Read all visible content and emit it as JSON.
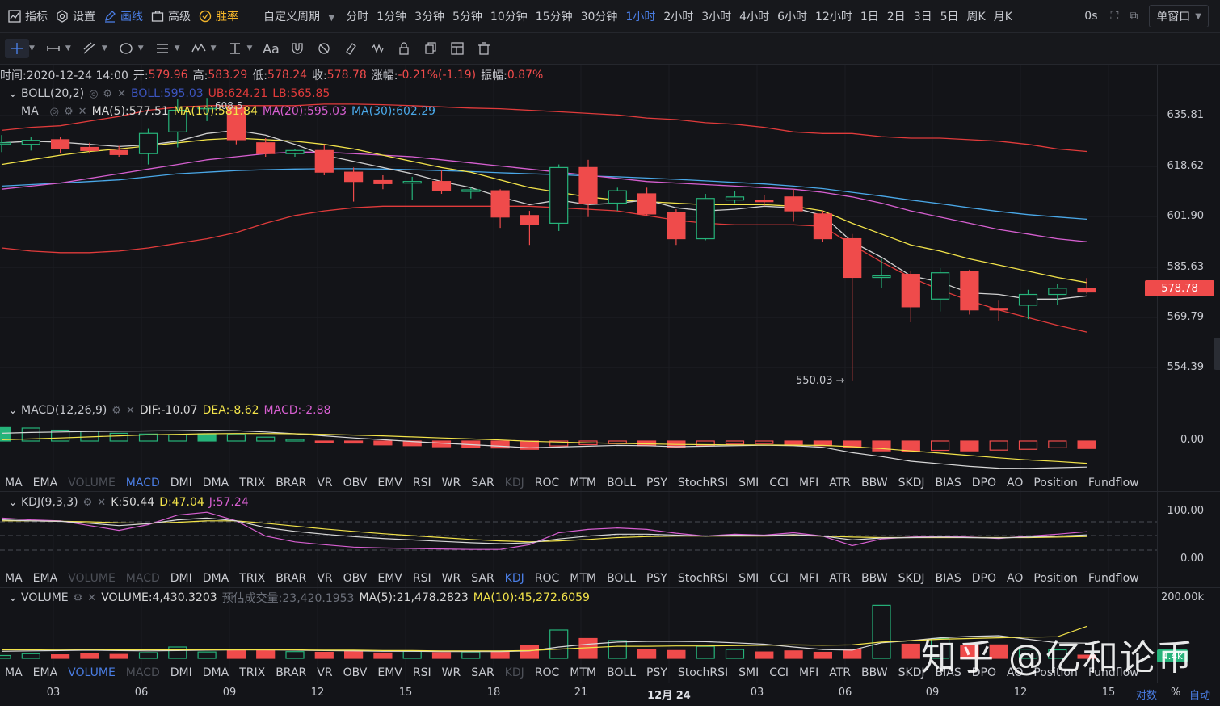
{
  "topbar": {
    "items": [
      {
        "label": "指标",
        "icon": "indicator-icon"
      },
      {
        "label": "设置",
        "icon": "gear-icon"
      },
      {
        "label": "画线",
        "icon": "pencil-icon",
        "active": true
      },
      {
        "label": "高级",
        "icon": "briefcase-icon"
      },
      {
        "label": "胜率",
        "icon": "win-rate-icon",
        "win": true
      }
    ],
    "custom_period": "自定义周期",
    "periods": [
      "分时",
      "1分钟",
      "3分钟",
      "5分钟",
      "10分钟",
      "15分钟",
      "30分钟",
      "1小时",
      "2小时",
      "3小时",
      "4小时",
      "6小时",
      "12小时",
      "1日",
      "2日",
      "3日",
      "5日",
      "周K",
      "月K"
    ],
    "active_period": "1小时",
    "latency": "0s",
    "window_mode": "单窗口"
  },
  "ohlc_line": {
    "time_label": "时间:2020-12-24 14:00",
    "open_label": "开:",
    "open": "579.96",
    "high_label": "高:",
    "high": "583.29",
    "low_label": "低:",
    "low": "578.24",
    "close_label": "收:",
    "close": "578.78",
    "change_label": "涨幅:",
    "change": "-0.21%(-1.19)",
    "amp_label": "振幅:",
    "amp": "0.87%"
  },
  "boll_legend": {
    "name": "BOLL(20,2)",
    "boll": "BOLL:595.03",
    "ub": "UB:624.21",
    "lb": "LB:565.85"
  },
  "ma_legend": {
    "name": "MA",
    "ma5": "MA(5):577.51",
    "ma10": "MA(10):581.84",
    "ma20": "MA(20):595.03",
    "ma30": "MA(30):602.29"
  },
  "macd_legend": {
    "name": "MACD(12,26,9)",
    "dif": "DIF:-10.07",
    "dea": "DEA:-8.62",
    "macd": "MACD:-2.88"
  },
  "kdj_legend": {
    "name": "KDJ(9,3,3)",
    "k": "K:50.44",
    "d": "D:47.04",
    "j": "J:57.24"
  },
  "volume_legend": {
    "name": "VOLUME",
    "volume": "VOLUME:4,430.3203",
    "est": "预估成交量:23,420.1953",
    "ma5": "MA(5):21,478.2823",
    "ma10": "MA(10):45,272.6059"
  },
  "indicator_tabs": [
    "MA",
    "EMA",
    "VOLUME",
    "MACD",
    "DMI",
    "DMA",
    "TRIX",
    "BRAR",
    "VR",
    "OBV",
    "EMV",
    "RSI",
    "WR",
    "SAR",
    "KDJ",
    "ROC",
    "MTM",
    "BOLL",
    "PSY",
    "StochRSI",
    "SMI",
    "CCI",
    "MFI",
    "ATR",
    "BBW",
    "SKDJ",
    "BIAS",
    "DPO",
    "AO",
    "Position",
    "Fundflow"
  ],
  "tabs_row1": {
    "dim": [
      "VOLUME",
      "KDJ"
    ],
    "sel": "MACD"
  },
  "tabs_row2": {
    "dim": [
      "VOLUME",
      "MACD"
    ],
    "sel": "KDJ"
  },
  "tabs_row3": {
    "dim": [
      "MACD",
      "KDJ"
    ],
    "sel": "VOLUME"
  },
  "price_axis": [
    "635.81",
    "618.62",
    "601.90",
    "585.63",
    "569.79",
    "554.39"
  ],
  "last_price": "578.78",
  "low_marker": "550.03 →",
  "high_marker": "608.5",
  "macd_axis": [
    "0.00"
  ],
  "kdj_axis": [
    "100.00",
    "0.00"
  ],
  "vol_axis": [
    "200.00k"
  ],
  "vol_tag": "4.4k",
  "time_axis": [
    "03",
    "06",
    "09",
    "12",
    "15",
    "18",
    "21",
    "12月 24",
    "03",
    "06",
    "09",
    "12",
    "15"
  ],
  "bottom_right": {
    "log": "对数",
    "pct": "%",
    "auto": "自动"
  },
  "watermark": "知乎 @亿和论币",
  "colors": {
    "up": "#26b37a",
    "down": "#ef4b4b",
    "ma5": "#d0d0d0",
    "ma10": "#f2e34a",
    "ma20": "#d65fd0",
    "ma30": "#4aa8e8",
    "boll_band": "#e03b3b",
    "accent": "#4a7de3"
  },
  "chart_data": {
    "type": "candlestick",
    "y_range": [
      545,
      645
    ],
    "x_labels": [
      "03",
      "06",
      "09",
      "12",
      "15",
      "18",
      "21",
      "12月 24",
      "03",
      "06",
      "09",
      "12",
      "15"
    ],
    "candles": [
      {
        "o": 626.8,
        "h": 629.5,
        "l": 624.0,
        "c": 627.0
      },
      {
        "o": 626.5,
        "h": 629.0,
        "l": 624.5,
        "c": 627.8
      },
      {
        "o": 628.0,
        "h": 629.0,
        "l": 623.8,
        "c": 625.0
      },
      {
        "o": 625.5,
        "h": 627.0,
        "l": 623.5,
        "c": 624.5
      },
      {
        "o": 624.5,
        "h": 626.0,
        "l": 622.5,
        "c": 623.2
      },
      {
        "o": 623.5,
        "h": 631.5,
        "l": 620.0,
        "c": 630.0
      },
      {
        "o": 630.5,
        "h": 641.0,
        "l": 625.5,
        "c": 637.5
      },
      {
        "o": 638.0,
        "h": 641.5,
        "l": 634.0,
        "c": 638.5
      },
      {
        "o": 638.5,
        "h": 639.0,
        "l": 626.5,
        "c": 628.0
      },
      {
        "o": 627.0,
        "h": 628.5,
        "l": 622.5,
        "c": 623.5
      },
      {
        "o": 623.5,
        "h": 625.0,
        "l": 622.5,
        "c": 624.5
      },
      {
        "o": 624.5,
        "h": 626.5,
        "l": 616.5,
        "c": 617.5
      },
      {
        "o": 617.5,
        "h": 619.0,
        "l": 608.0,
        "c": 614.5
      },
      {
        "o": 614.8,
        "h": 616.5,
        "l": 612.0,
        "c": 613.8
      },
      {
        "o": 614.0,
        "h": 616.0,
        "l": 608.5,
        "c": 614.5
      },
      {
        "o": 614.5,
        "h": 618.0,
        "l": 610.5,
        "c": 611.5
      },
      {
        "o": 611.5,
        "h": 612.5,
        "l": 609.0,
        "c": 611.8
      },
      {
        "o": 611.5,
        "h": 612.0,
        "l": 599.5,
        "c": 603.0
      },
      {
        "o": 603.5,
        "h": 605.0,
        "l": 594.0,
        "c": 600.5
      },
      {
        "o": 601.0,
        "h": 620.0,
        "l": 598.5,
        "c": 619.0
      },
      {
        "o": 619.0,
        "h": 621.5,
        "l": 603.0,
        "c": 607.5
      },
      {
        "o": 607.5,
        "h": 612.5,
        "l": 605.0,
        "c": 611.5
      },
      {
        "o": 610.5,
        "h": 612.5,
        "l": 603.5,
        "c": 604.0
      },
      {
        "o": 604.5,
        "h": 605.5,
        "l": 594.0,
        "c": 596.0
      },
      {
        "o": 596.0,
        "h": 610.5,
        "l": 595.5,
        "c": 609.0
      },
      {
        "o": 608.5,
        "h": 611.5,
        "l": 607.5,
        "c": 609.5
      },
      {
        "o": 608.5,
        "h": 610.0,
        "l": 606.5,
        "c": 608.0
      },
      {
        "o": 609.5,
        "h": 612.0,
        "l": 601.5,
        "c": 605.0
      },
      {
        "o": 604.0,
        "h": 605.0,
        "l": 595.0,
        "c": 596.0
      },
      {
        "o": 596.0,
        "h": 597.5,
        "l": 550.0,
        "c": 583.5
      },
      {
        "o": 583.5,
        "h": 589.5,
        "l": 580.0,
        "c": 584.0
      },
      {
        "o": 584.5,
        "h": 585.5,
        "l": 569.0,
        "c": 574.0
      },
      {
        "o": 576.5,
        "h": 586.5,
        "l": 572.5,
        "c": 585.0
      },
      {
        "o": 585.5,
        "h": 586.0,
        "l": 571.5,
        "c": 573.0
      },
      {
        "o": 573.5,
        "h": 576.0,
        "l": 569.5,
        "c": 573.0
      },
      {
        "o": 574.5,
        "h": 579.5,
        "l": 570.0,
        "c": 578.0
      },
      {
        "o": 578.0,
        "h": 581.5,
        "l": 574.5,
        "c": 580.0
      },
      {
        "o": 579.96,
        "h": 583.29,
        "l": 578.24,
        "c": 578.78
      }
    ],
    "ma5": [
      627,
      627.5,
      627.2,
      626.5,
      625.8,
      626.3,
      627.5,
      630.0,
      631.0,
      629.5,
      626.5,
      623.0,
      621.0,
      619.0,
      617.0,
      614.5,
      612.5,
      609.5,
      607.0,
      608.5,
      607.0,
      607.5,
      608.5,
      606.0,
      605.0,
      605.5,
      606.5,
      606.0,
      603.5,
      595.0,
      590.0,
      584.0,
      582.0,
      578.5,
      578.0,
      576.5,
      576.5,
      577.51
    ],
    "ma10": [
      620,
      621.5,
      623.0,
      624.2,
      625.0,
      626.0,
      627.0,
      628.0,
      628.5,
      628.0,
      627.5,
      626.5,
      625.0,
      623.0,
      621.0,
      619.0,
      617.5,
      615.0,
      612.5,
      611.0,
      609.5,
      608.5,
      608.0,
      607.5,
      607.0,
      607.0,
      607.0,
      606.5,
      605.0,
      601.0,
      597.5,
      594.0,
      592.0,
      589.5,
      587.5,
      585.5,
      583.5,
      581.84
    ],
    "ma20": [
      612,
      613.0,
      614.0,
      615.5,
      617.0,
      618.5,
      620.0,
      621.5,
      622.5,
      623.5,
      624.0,
      624.0,
      623.5,
      623.0,
      622.5,
      621.5,
      620.5,
      619.5,
      618.5,
      617.5,
      616.5,
      615.5,
      614.5,
      614.0,
      613.5,
      613.0,
      612.5,
      612.0,
      611.0,
      609.5,
      607.5,
      605.0,
      603.0,
      601.0,
      599.0,
      597.5,
      596.0,
      595.03
    ],
    "ma30": [
      613,
      613.5,
      614.0,
      614.5,
      615.0,
      616.0,
      617.0,
      617.5,
      618.0,
      618.3,
      618.5,
      618.6,
      618.6,
      618.5,
      618.3,
      618.0,
      617.7,
      617.3,
      617.0,
      616.7,
      616.3,
      616.0,
      615.6,
      615.2,
      614.7,
      614.2,
      613.7,
      613.0,
      612.2,
      611.0,
      609.8,
      608.5,
      607.3,
      606.0,
      604.8,
      603.8,
      603.0,
      602.29
    ],
    "boll_ub": [
      631,
      632.0,
      632.5,
      634.0,
      635.5,
      637.5,
      638.5,
      639.0,
      639.0,
      639.0,
      639.0,
      639.5,
      639.5,
      639.3,
      639.0,
      638.6,
      638.2,
      638.0,
      637.5,
      637.0,
      636.5,
      636.0,
      635.0,
      634.5,
      633.5,
      633.0,
      632.0,
      630.5,
      630.0,
      630.0,
      629.0,
      628.5,
      628.5,
      628.0,
      627.5,
      626.5,
      625.0,
      624.21
    ],
    "boll_lb": [
      593,
      592.0,
      591.5,
      591.5,
      592.0,
      593.0,
      594.5,
      596.0,
      598.0,
      601.0,
      603.5,
      605.0,
      606.0,
      606.5,
      606.5,
      606.5,
      606.5,
      606.5,
      606.5,
      606.0,
      605.5,
      605.0,
      603.5,
      602.0,
      601.0,
      600.5,
      600.5,
      600.5,
      600.0,
      594.0,
      588.5,
      583.5,
      579.5,
      576.0,
      573.0,
      570.5,
      568.0,
      565.85
    ]
  },
  "macd_data": {
    "hist": [
      5.5,
      5.0,
      4.2,
      3.8,
      3.0,
      2.7,
      2.5,
      2.8,
      2.5,
      1.5,
      0.6,
      -0.3,
      -0.8,
      -1.5,
      -1.8,
      -2.2,
      -2.5,
      -2.7,
      -3.2,
      -1.9,
      -1.4,
      -1.0,
      -1.8,
      -2.5,
      -1.8,
      -1.2,
      -1.0,
      -1.3,
      -1.8,
      -2.5,
      -3.8,
      -4.0,
      -3.6,
      -3.8,
      -3.5,
      -3.2,
      -2.6,
      -2.88
    ],
    "dif": [
      3.0,
      3.3,
      3.5,
      3.7,
      3.8,
      3.9,
      4.0,
      4.2,
      4.0,
      3.5,
      2.8,
      2.0,
      1.2,
      0.5,
      -0.2,
      -0.8,
      -1.4,
      -2.0,
      -2.6,
      -2.3,
      -2.0,
      -1.7,
      -1.8,
      -2.2,
      -2.0,
      -1.8,
      -1.6,
      -1.8,
      -2.4,
      -4.5,
      -6.0,
      -7.8,
      -8.8,
      -9.8,
      -10.5,
      -10.6,
      -10.3,
      -10.07
    ],
    "dea": [
      0.5,
      0.8,
      1.2,
      1.6,
      2.0,
      2.4,
      2.6,
      2.8,
      2.9,
      2.9,
      2.8,
      2.6,
      2.3,
      2.0,
      1.6,
      1.2,
      0.8,
      0.4,
      -0.1,
      -0.4,
      -0.7,
      -0.9,
      -1.1,
      -1.3,
      -1.4,
      -1.5,
      -1.5,
      -1.6,
      -1.7,
      -2.2,
      -2.9,
      -3.8,
      -4.7,
      -5.6,
      -6.5,
      -7.3,
      -7.9,
      -8.62
    ],
    "y_range": [
      -13,
      8
    ]
  },
  "kdj_data": {
    "k": [
      82,
      80,
      79,
      75,
      70,
      74,
      82,
      86,
      80,
      66,
      58,
      52,
      47,
      43,
      40,
      37,
      34,
      32,
      34,
      42,
      48,
      52,
      52,
      50,
      48,
      50,
      49,
      51,
      48,
      40,
      44,
      45,
      46,
      45,
      44,
      46,
      48,
      50.44
    ],
    "d": [
      80,
      80,
      79,
      78,
      76,
      75,
      77,
      80,
      80,
      75,
      69,
      63,
      58,
      53,
      49,
      45,
      41,
      38,
      36,
      38,
      41,
      45,
      47,
      48,
      48,
      48,
      48,
      49,
      48,
      46,
      45,
      45,
      45,
      45,
      45,
      45,
      46,
      47.04
    ],
    "j": [
      86,
      82,
      80,
      70,
      60,
      72,
      92,
      98,
      80,
      48,
      36,
      30,
      25,
      23,
      22,
      21,
      20,
      20,
      30,
      55,
      62,
      65,
      62,
      54,
      48,
      52,
      50,
      55,
      48,
      28,
      42,
      46,
      48,
      46,
      43,
      48,
      52,
      57.24
    ],
    "y_range": [
      0,
      100
    ]
  },
  "vol_data": {
    "v": [
      4000,
      6500,
      5000,
      7000,
      5500,
      8000,
      16000,
      9000,
      12000,
      11000,
      9500,
      8500,
      11000,
      7500,
      10000,
      8000,
      9000,
      10000,
      18000,
      40000,
      28000,
      25000,
      12000,
      11000,
      17000,
      12500,
      9000,
      10500,
      8500,
      13000,
      75000,
      20000,
      28000,
      18000,
      19000,
      13000,
      12000,
      4430
    ],
    "ma5": [
      10000,
      10500,
      11000,
      11500,
      11000,
      10500,
      11000,
      11500,
      12000,
      12000,
      11500,
      11000,
      10500,
      10000,
      10000,
      9500,
      9500,
      9500,
      10500,
      16000,
      20000,
      23000,
      24000,
      24000,
      23500,
      22000,
      20000,
      16000,
      12500,
      11500,
      22000,
      25000,
      29000,
      31000,
      32000,
      27000,
      22000,
      21478
    ],
    "ma10": [
      12000,
      12000,
      12500,
      12500,
      12000,
      12000,
      12000,
      12000,
      12000,
      12000,
      12000,
      11500,
      11500,
      11000,
      11000,
      10500,
      10500,
      10500,
      11000,
      13000,
      15000,
      17000,
      17000,
      17500,
      17500,
      18000,
      18500,
      19000,
      18500,
      19000,
      23000,
      25000,
      27000,
      28000,
      29000,
      30000,
      30500,
      45272
    ],
    "y_max": 80000
  }
}
